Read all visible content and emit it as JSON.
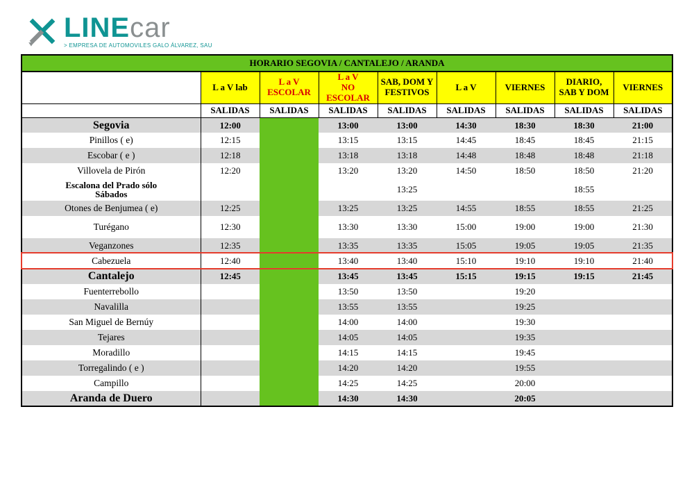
{
  "logo": {
    "line": "LINE",
    "car": "car",
    "sub": "> EMPRESA DE AUTOMOVILES GALO ÁLVAREZ, SAU",
    "icon_color": "#0f9493",
    "accent_color": "#8a8f90"
  },
  "title": "HORARIO SEGOVIA / CANTALEJO / ARANDA",
  "colors": {
    "header_green": "#66c21f",
    "header_yellow": "#ffff00",
    "band_grey": "#d7d7d7",
    "highlight_red": "#e53b2c",
    "text_red": "#d80000"
  },
  "columns": [
    {
      "label": "L a V lab",
      "red": false
    },
    {
      "label": "L a V\nESCOLAR",
      "red": true
    },
    {
      "label": "L a V\nNO ESCOLAR",
      "red": true
    },
    {
      "label": "SAB, DOM Y\nFESTIVOS",
      "red": false
    },
    {
      "label": "L a V",
      "red": false
    },
    {
      "label": "VIERNES",
      "red": false
    },
    {
      "label": "DIARIO,\nSAB Y DOM",
      "red": false
    },
    {
      "label": "VIERNES",
      "red": false
    }
  ],
  "salidas_label": "SALIDAS",
  "green_col_index": 1,
  "highlight_row_index": 8,
  "rows": [
    {
      "stop": "Segovia",
      "node": true,
      "band": true,
      "times": [
        "12:00",
        "",
        "13:00",
        "13:00",
        "14:30",
        "18:30",
        "18:30",
        "21:00"
      ]
    },
    {
      "stop": "Pinillos ( e)",
      "node": false,
      "band": false,
      "times": [
        "12:15",
        "",
        "13:15",
        "13:15",
        "14:45",
        "18:45",
        "18:45",
        "21:15"
      ]
    },
    {
      "stop": "Escobar ( e )",
      "node": false,
      "band": true,
      "times": [
        "12:18",
        "",
        "13:18",
        "13:18",
        "14:48",
        "18:48",
        "18:48",
        "21:18"
      ]
    },
    {
      "stop": "Villovela de Pirón",
      "node": false,
      "band": false,
      "times": [
        "12:20",
        "",
        "13:20",
        "13:20",
        "14:50",
        "18:50",
        "18:50",
        "21:20"
      ]
    },
    {
      "stop": "Escalona del Prado sólo\nSábados",
      "node": false,
      "band": false,
      "tall": true,
      "twoln": true,
      "times": [
        "",
        "",
        "",
        "13:25",
        "",
        "",
        "18:55",
        ""
      ]
    },
    {
      "stop": "Otones de Benjumea ( e)",
      "node": false,
      "band": true,
      "times": [
        "12:25",
        "",
        "13:25",
        "13:25",
        "14:55",
        "18:55",
        "18:55",
        "21:25"
      ]
    },
    {
      "stop": "Turégano",
      "node": false,
      "band": false,
      "tall": true,
      "times": [
        "12:30",
        "",
        "13:30",
        "13:30",
        "15:00",
        "19:00",
        "19:00",
        "21:30"
      ]
    },
    {
      "stop": "Veganzones",
      "node": false,
      "band": true,
      "times": [
        "12:35",
        "",
        "13:35",
        "13:35",
        "15:05",
        "19:05",
        "19:05",
        "21:35"
      ]
    },
    {
      "stop": "Cabezuela",
      "node": false,
      "band": false,
      "times": [
        "12:40",
        "",
        "13:40",
        "13:40",
        "15:10",
        "19:10",
        "19:10",
        "21:40"
      ]
    },
    {
      "stop": "Cantalejo",
      "node": true,
      "band": true,
      "times": [
        "12:45",
        "",
        "13:45",
        "13:45",
        "15:15",
        "19:15",
        "19:15",
        "21:45"
      ]
    },
    {
      "stop": "Fuenterrebollo",
      "node": false,
      "band": false,
      "times": [
        "",
        "",
        "13:50",
        "13:50",
        "",
        "19:20",
        "",
        ""
      ]
    },
    {
      "stop": "Navalilla",
      "node": false,
      "band": true,
      "times": [
        "",
        "",
        "13:55",
        "13:55",
        "",
        "19:25",
        "",
        ""
      ]
    },
    {
      "stop": "San Miguel de Bernúy",
      "node": false,
      "band": false,
      "times": [
        "",
        "",
        "14:00",
        "14:00",
        "",
        "19:30",
        "",
        ""
      ]
    },
    {
      "stop": "Tejares",
      "node": false,
      "band": true,
      "times": [
        "",
        "",
        "14:05",
        "14:05",
        "",
        "19:35",
        "",
        ""
      ]
    },
    {
      "stop": "Moradillo",
      "node": false,
      "band": false,
      "times": [
        "",
        "",
        "14:15",
        "14:15",
        "",
        "19:45",
        "",
        ""
      ]
    },
    {
      "stop": "Torregalindo ( e )",
      "node": false,
      "band": true,
      "times": [
        "",
        "",
        "14:20",
        "14:20",
        "",
        "19:55",
        "",
        ""
      ]
    },
    {
      "stop": "Campillo",
      "node": false,
      "band": false,
      "times": [
        "",
        "",
        "14:25",
        "14:25",
        "",
        "20:00",
        "",
        ""
      ]
    },
    {
      "stop": "Aranda de Duero",
      "node": true,
      "band": true,
      "times": [
        "",
        "",
        "14:30",
        "14:30",
        "",
        "20:05",
        "",
        ""
      ]
    }
  ]
}
